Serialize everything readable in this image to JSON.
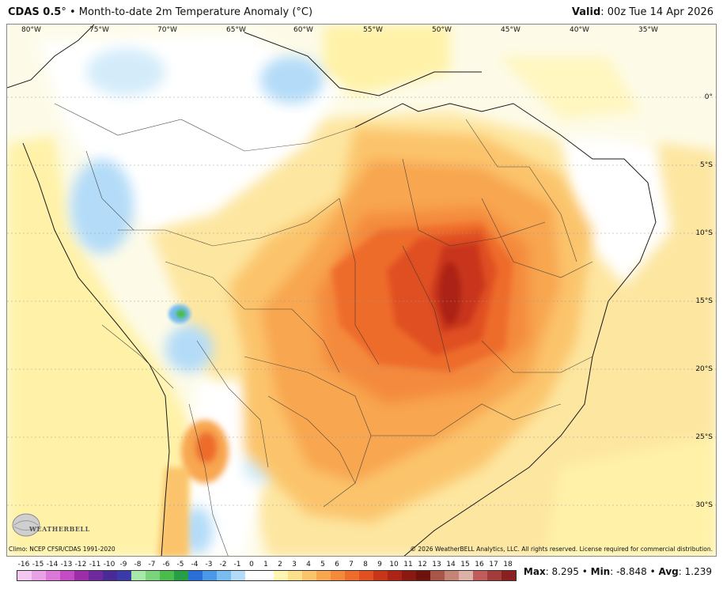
{
  "header": {
    "model": "CDAS 0.5",
    "degree_mark": "°",
    "bullet": "•",
    "title": "Month-to-date 2m Temperature Anomaly (°C)",
    "valid_label": "Valid",
    "valid_value": ": 00z Tue 14 Apr 2026"
  },
  "map": {
    "lon_labels": [
      "80°W",
      "75°W",
      "70°W",
      "65°W",
      "60°W",
      "55°W",
      "50°W",
      "45°W",
      "40°W",
      "35°W"
    ],
    "lat_labels": [
      "0°",
      "5°S",
      "10°S",
      "15°S",
      "20°S",
      "25°S",
      "30°S"
    ],
    "logo_text": "WEATHERBELL",
    "climo": "Climo: NCEP CFSR/CDAS 1991-2020",
    "copyright": "© 2026 WeatherBELL Analytics, LLC. All rights reserved. License required for commercial distribution."
  },
  "colorbar": {
    "labels": [
      "-16",
      "-15",
      "-14",
      "-13",
      "-12",
      "-11",
      "-10",
      "-9",
      "-8",
      "-7",
      "-6",
      "-5",
      "-4",
      "-3",
      "-2",
      "-1",
      "0",
      "1",
      "2",
      "3",
      "4",
      "5",
      "6",
      "7",
      "8",
      "9",
      "10",
      "11",
      "12",
      "13",
      "14",
      "15",
      "16",
      "17",
      "18"
    ],
    "colors": [
      "#f4c8f0",
      "#eaa2e6",
      "#dc78d8",
      "#c44cc4",
      "#9c2ea8",
      "#6e2a9c",
      "#4a2a96",
      "#3a3aa8",
      "#a8e8a8",
      "#7cd47c",
      "#4cbc4c",
      "#26a046",
      "#2a6ed8",
      "#4c98e8",
      "#78bcf0",
      "#b4dcf8",
      "#ffffff",
      "#ffffff",
      "#fff6b4",
      "#fde08c",
      "#fbc46c",
      "#f8a650",
      "#f48a3c",
      "#ee6c2c",
      "#e05020",
      "#c8361a",
      "#ac2416",
      "#8c1812",
      "#6e120e",
      "#a85648",
      "#c48476",
      "#dcb2a8",
      "#c05c5c",
      "#a43c3c",
      "#8a2020"
    ]
  },
  "stats": {
    "max_label": "Max",
    "max_value": ": 8.295",
    "min_label": "Min",
    "min_value": ": -8.848",
    "avg_label": "Avg",
    "avg_value": ": 1.239",
    "sep": " • "
  }
}
